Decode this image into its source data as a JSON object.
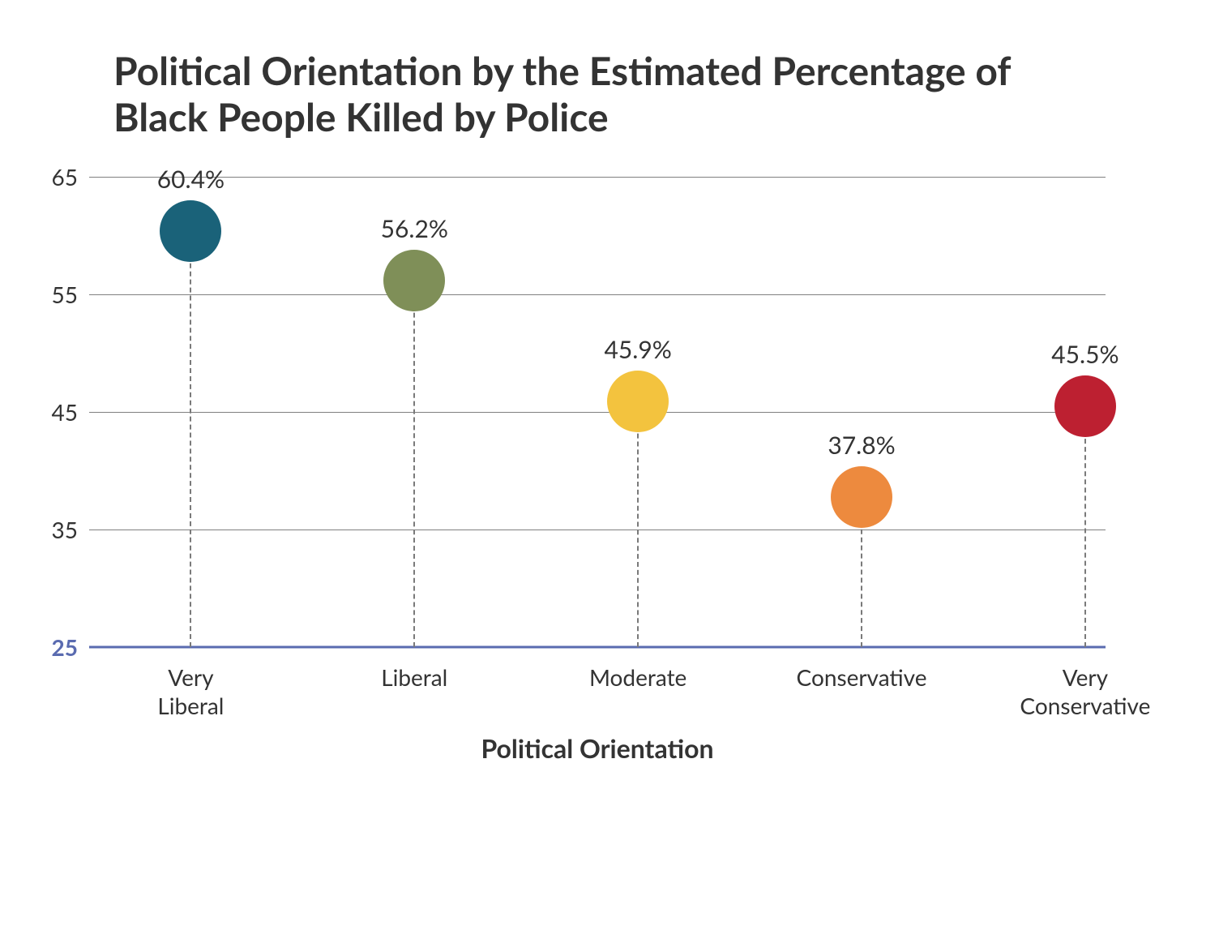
{
  "chart": {
    "type": "lollipop",
    "title": "Political Orientation by the Estimated Percentage of Black People Killed by Police",
    "title_fontsize": 48,
    "title_color": "#333333",
    "x_axis": {
      "title": "Political Orientation",
      "title_fontsize": 32,
      "tick_fontsize": 28,
      "categories": [
        "Very\nLiberal",
        "Liberal",
        "Moderate",
        "Conservative",
        "Very\nConservative"
      ]
    },
    "y_axis": {
      "min": 25,
      "max": 65,
      "tick_step": 10,
      "ticks": [
        25,
        35,
        45,
        55,
        65
      ],
      "tick_fontsize": 28,
      "baseline_tick_color": "#5a6bb0",
      "tick_color": "#333333"
    },
    "grid": {
      "color": "#808080",
      "baseline_color": "#5a6bb0",
      "baseline_width": 3
    },
    "stem_color": "#7a7a7a",
    "marker_radius": 38,
    "value_label_fontsize": 30,
    "background_color": "#ffffff",
    "points": [
      {
        "category": "Very\nLiberal",
        "value": 60.4,
        "value_label": "60.4%",
        "color": "#1a6279"
      },
      {
        "category": "Liberal",
        "value": 56.2,
        "value_label": "56.2%",
        "color": "#7f8f58"
      },
      {
        "category": "Moderate",
        "value": 45.9,
        "value_label": "45.9%",
        "color": "#f3c33e"
      },
      {
        "category": "Conservative",
        "value": 37.8,
        "value_label": "37.8%",
        "color": "#ed8a3e"
      },
      {
        "category": "Very\nConservative",
        "value": 45.5,
        "value_label": "45.5%",
        "color": "#bd2031"
      }
    ],
    "plot_inset": {
      "left_pct": 10,
      "right_pct": 2
    }
  }
}
